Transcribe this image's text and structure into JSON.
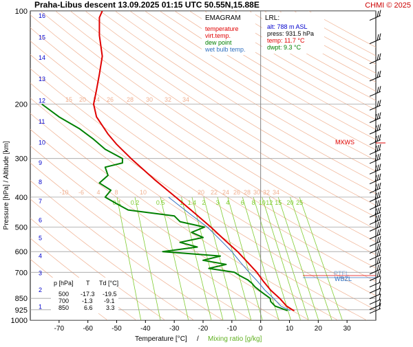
{
  "header": {
    "title": "Praha-Libus   descent   13.09.2025 01:15 UTC  50.55N,15.88E",
    "credit": "CHMI © 2025"
  },
  "legend": {
    "title": "EMAGRAM",
    "items": [
      {
        "label": "temperature",
        "color": "#e00000"
      },
      {
        "label": "virt.temp.",
        "color": "#e00000"
      },
      {
        "label": "dew point",
        "color": "#008000"
      },
      {
        "label": "wet bulb temp.",
        "color": "#3070c0"
      }
    ]
  },
  "lrl": {
    "title": "LRL:",
    "lines": [
      {
        "text": "alt: 788 m ASL",
        "color": "#0000cc"
      },
      {
        "text": "press: 931.5 hPa",
        "color": "#000000"
      },
      {
        "text": "temp: 11.7 °C",
        "color": "#e00000"
      },
      {
        "text": "dwpt: 9.3 °C",
        "color": "#008000"
      }
    ]
  },
  "table": {
    "headers": [
      "p [hPa]",
      "T",
      "Td [°C]"
    ],
    "rows": [
      [
        "500",
        "-17.3",
        "-19.5"
      ],
      [
        "700",
        "-1.3",
        "-9.1"
      ],
      [
        "850",
        "6.6",
        "3.3"
      ]
    ]
  },
  "axes": {
    "xlabel_part1": "Temperature [°C]",
    "xlabel_sep": "/",
    "xlabel_part2": "Mixing ratio [g/kg]",
    "ylabel": "Pressure [hPa]  /  Altitude [km]"
  },
  "annotations": {
    "mxws": "MXWS",
    "wbzl": "WBZL",
    "ptfl": "PTFL"
  },
  "colors": {
    "temperature": "#e00000",
    "dewpoint": "#008000",
    "wetbulb": "#3070c0",
    "isobar": "#a0a0a0",
    "dry_adiabat": "#f0b090",
    "mixing_ratio": "#80cc30",
    "altitude": "#0000cc"
  },
  "chart_data": {
    "type": "line",
    "xlim": [
      -80,
      40
    ],
    "ylim": [
      1000,
      100
    ],
    "yscale": "log",
    "x_ticks": [
      -70,
      -60,
      -50,
      -40,
      -30,
      -20,
      -10,
      0,
      10,
      20,
      30
    ],
    "pressure_ticks": [
      100,
      200,
      300,
      400,
      500,
      600,
      700,
      850,
      925,
      1000
    ],
    "altitude_ticks_km": [
      {
        "km": 1,
        "p": 900
      },
      {
        "km": 2,
        "p": 795
      },
      {
        "km": 3,
        "p": 701
      },
      {
        "km": 4,
        "p": 616
      },
      {
        "km": 5,
        "p": 540
      },
      {
        "km": 6,
        "p": 472
      },
      {
        "km": 7,
        "p": 411
      },
      {
        "km": 8,
        "p": 356
      },
      {
        "km": 9,
        "p": 308
      },
      {
        "km": 10,
        "p": 265
      },
      {
        "km": 11,
        "p": 227
      },
      {
        "km": 12,
        "p": 194
      },
      {
        "km": 13,
        "p": 165
      },
      {
        "km": 14,
        "p": 141
      },
      {
        "km": 15,
        "p": 121
      },
      {
        "km": 16,
        "p": 103
      }
    ],
    "mixing_ratio_labels": [
      "0.1",
      "0.2",
      "0.5",
      "1",
      "1.4",
      "2",
      "3",
      "4",
      "6",
      "8",
      "10",
      "12",
      "15",
      "20",
      "25"
    ],
    "dry_adiabat_labels_200": [
      "15",
      "20",
      "24",
      "26",
      "28",
      "30",
      "32",
      "34"
    ],
    "dry_adiabat_labels_400": [
      "-10",
      "-6",
      "4",
      "8",
      "10",
      "20",
      "22",
      "24",
      "26",
      "28",
      "30",
      "32",
      "34"
    ],
    "series": [
      {
        "name": "temperature",
        "p": [
          931.5,
          925,
          900,
          850,
          800,
          750,
          700,
          650,
          600,
          550,
          500,
          450,
          400,
          350,
          300,
          270,
          250,
          220,
          200,
          180,
          160,
          140,
          120,
          105,
          100
        ],
        "values": [
          11.7,
          11,
          9,
          6.6,
          3.5,
          1,
          -1.3,
          -4.5,
          -8,
          -12.5,
          -17.3,
          -23,
          -29.5,
          -37,
          -45,
          -50,
          -53,
          -57,
          -58,
          -57,
          -56,
          -55,
          -56,
          -56,
          -55
        ]
      },
      {
        "name": "dew point",
        "p": [
          931.5,
          925,
          900,
          870,
          850,
          820,
          800,
          780,
          760,
          740,
          720,
          700,
          680,
          660,
          640,
          620,
          600,
          580,
          560,
          540,
          520,
          500,
          480,
          460,
          440,
          420,
          400,
          380,
          360,
          340,
          320,
          310,
          300,
          280,
          260,
          240,
          220,
          200
        ],
        "values": [
          9.3,
          8.5,
          5,
          3.5,
          3.3,
          1,
          -0.5,
          -2,
          -3,
          -4.5,
          -7,
          -9.1,
          -18,
          -12,
          -20,
          -14,
          -34,
          -22,
          -28,
          -20,
          -24,
          -19.5,
          -28,
          -30,
          -46,
          -50,
          -54,
          -52,
          -56,
          -53,
          -54,
          -48,
          -48,
          -54,
          -58,
          -63,
          -70,
          -76
        ]
      },
      {
        "name": "wet bulb temp.",
        "p": [
          931.5,
          900,
          850,
          800,
          750,
          700,
          650,
          600,
          550,
          500,
          450,
          400
        ],
        "values": [
          10.3,
          7,
          4.5,
          1.5,
          -1,
          -4,
          -7,
          -10,
          -14,
          -18.5,
          -25,
          -32
        ]
      }
    ]
  }
}
